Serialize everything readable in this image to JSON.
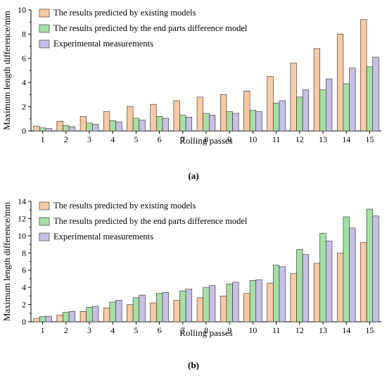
{
  "chart_data": [
    {
      "panel": "(a)",
      "type": "bar",
      "categories": [
        "1",
        "2",
        "3",
        "4",
        "5",
        "6",
        "7",
        "8",
        "9",
        "10",
        "11",
        "12",
        "13",
        "14",
        "15"
      ],
      "series": [
        {
          "name": "The results predicted by existing models",
          "color": "#fbc9a3",
          "values": [
            0.4,
            0.8,
            1.2,
            1.6,
            2.0,
            2.2,
            2.5,
            2.8,
            3.0,
            3.3,
            4.5,
            5.6,
            6.8,
            8.0,
            9.2
          ]
        },
        {
          "name": "The results predicted by the end parts difference model",
          "color": "#a5dfa4",
          "values": [
            0.25,
            0.45,
            0.65,
            0.85,
            1.05,
            1.2,
            1.3,
            1.45,
            1.6,
            1.7,
            2.3,
            2.8,
            3.4,
            3.9,
            5.3
          ]
        },
        {
          "name": "Experimental measurements",
          "color": "#c7bfe6",
          "values": [
            0.2,
            0.35,
            0.55,
            0.75,
            0.9,
            1.05,
            1.15,
            1.3,
            1.45,
            1.6,
            2.5,
            3.4,
            4.3,
            5.2,
            6.1
          ]
        }
      ],
      "xlabel": "Rolling passes",
      "ylabel": "Maximum length difference/mm",
      "ylim": [
        0,
        10
      ],
      "yticks": [
        "0",
        "2",
        "4",
        "6",
        "8",
        "10"
      ],
      "legend_position": "top-left",
      "caption": "(a)"
    },
    {
      "panel": "(b)",
      "type": "bar",
      "categories": [
        "1",
        "2",
        "3",
        "4",
        "5",
        "6",
        "7",
        "8",
        "9",
        "10",
        "11",
        "12",
        "13",
        "14",
        "15"
      ],
      "series": [
        {
          "name": "The results predicted by existing models",
          "color": "#fbc9a3",
          "values": [
            0.4,
            0.8,
            1.2,
            1.6,
            2.0,
            2.2,
            2.5,
            2.8,
            3.0,
            3.3,
            4.5,
            5.6,
            6.8,
            8.0,
            9.2
          ]
        },
        {
          "name": "The results predicted by the end parts difference model",
          "color": "#a5dfa4",
          "values": [
            0.6,
            1.1,
            1.7,
            2.3,
            2.8,
            3.3,
            3.6,
            4.0,
            4.4,
            4.8,
            6.6,
            8.4,
            10.3,
            12.2,
            13.1
          ]
        },
        {
          "name": "Experimental measurements",
          "color": "#c7bfe6",
          "values": [
            0.65,
            1.2,
            1.8,
            2.5,
            3.1,
            3.4,
            3.8,
            4.2,
            4.6,
            4.9,
            6.4,
            7.8,
            9.4,
            10.9,
            12.3
          ]
        }
      ],
      "xlabel": "Rolling passes",
      "ylabel": "Maximum length difference/mm",
      "ylim": [
        0,
        14
      ],
      "yticks": [
        "0",
        "2",
        "4",
        "6",
        "8",
        "10",
        "12",
        "14"
      ],
      "legend_position": "top-left",
      "caption": "(b)"
    }
  ]
}
